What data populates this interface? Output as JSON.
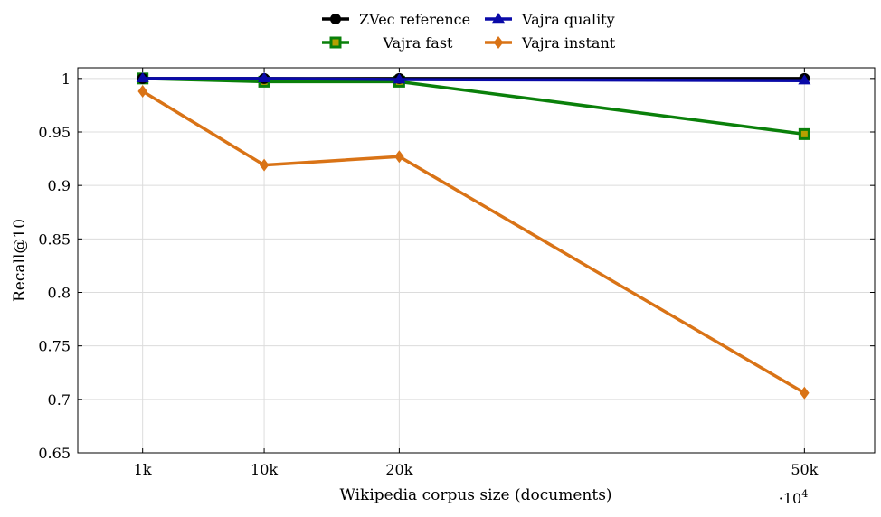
{
  "chart_data": {
    "type": "line",
    "title": "",
    "xlabel": "Wikipedia corpus size (documents)",
    "ylabel": "Recall@10",
    "x_scale_note": "·10",
    "x_scale_exp": "4",
    "x": [
      1000,
      10000,
      20000,
      50000
    ],
    "xlim": [
      -3800,
      55200
    ],
    "ylim": [
      0.65,
      1.01
    ],
    "x_ticks": [
      {
        "value": 1000,
        "label": "1k"
      },
      {
        "value": 10000,
        "label": "10k"
      },
      {
        "value": 20000,
        "label": "20k"
      },
      {
        "value": 50000,
        "label": "50k"
      }
    ],
    "y_ticks": [
      {
        "value": 0.65,
        "label": "0.65"
      },
      {
        "value": 0.7,
        "label": "0.7"
      },
      {
        "value": 0.75,
        "label": "0.75"
      },
      {
        "value": 0.8,
        "label": "0.8"
      },
      {
        "value": 0.85,
        "label": "0.85"
      },
      {
        "value": 0.9,
        "label": "0.9"
      },
      {
        "value": 0.95,
        "label": "0.95"
      },
      {
        "value": 1.0,
        "label": "1"
      }
    ],
    "grid": true,
    "legend_position": "top-center",
    "series": [
      {
        "name": "ZVec reference",
        "color": "#000000",
        "marker": "circle",
        "values": [
          1.0,
          1.0,
          1.0,
          1.0
        ]
      },
      {
        "name": "Vajra quality",
        "color": "#0a0aa8",
        "marker": "triangle",
        "values": [
          1.0,
          1.0,
          0.999,
          0.998
        ]
      },
      {
        "name": "Vajra fast",
        "color": "#0a800a",
        "marker": "square",
        "values": [
          1.0,
          0.997,
          0.997,
          0.948
        ]
      },
      {
        "name": "Vajra instant",
        "color": "#d97316",
        "marker": "diamond",
        "values": [
          0.988,
          0.919,
          0.927,
          0.706
        ]
      }
    ]
  }
}
